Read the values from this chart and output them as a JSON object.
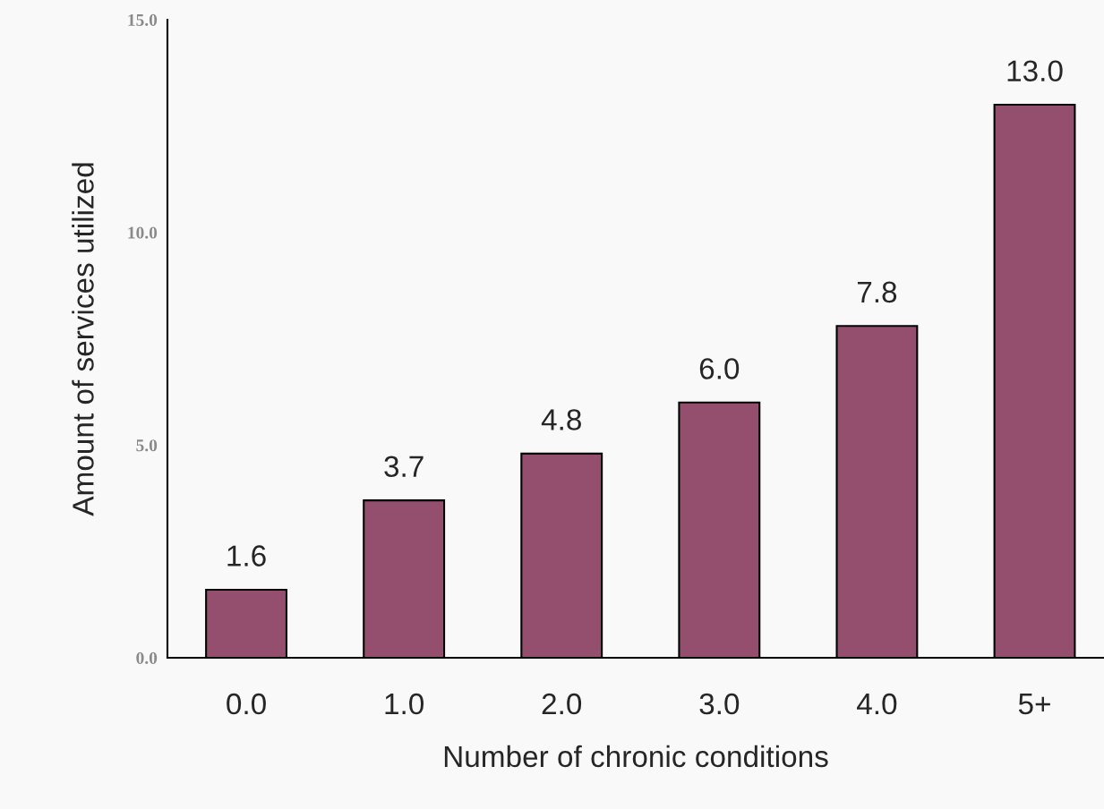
{
  "chart_data": {
    "type": "bar",
    "xlabel": "Number of chronic conditions",
    "ylabel": "Amount of services utilized",
    "categories": [
      "0.0",
      "1.0",
      "2.0",
      "3.0",
      "4.0",
      "5+"
    ],
    "values": [
      1.6,
      3.7,
      4.8,
      6.0,
      7.8,
      13.0
    ],
    "color": "#954f6e",
    "ylim": [
      0,
      15
    ],
    "yticks": [
      {
        "value": 0,
        "label": "0.0"
      },
      {
        "value": 5,
        "label": "5.0"
      },
      {
        "value": 10,
        "label": "10.0"
      },
      {
        "value": 15,
        "label": "15.0"
      }
    ],
    "value_labels": [
      "1.6",
      "3.7",
      "4.8",
      "6.0",
      "7.8",
      "13.0"
    ],
    "grid": false
  }
}
